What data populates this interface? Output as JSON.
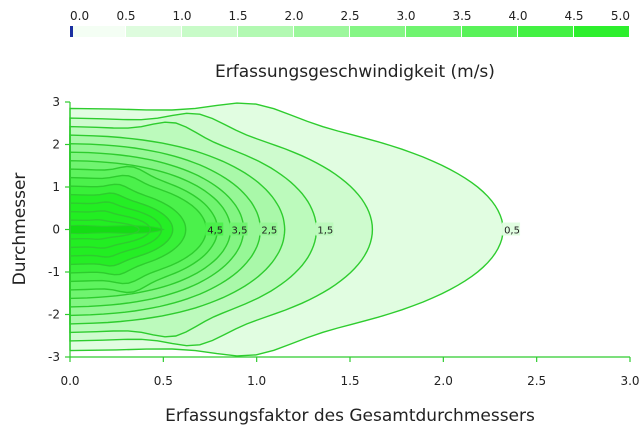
{
  "chart_data": {
    "type": "contour",
    "xlabel": "Erfassungsfaktor des Gesamtdurchmessers",
    "ylabel": "Durchmesser",
    "xlim": [
      0,
      3
    ],
    "ylim": [
      -3,
      3
    ],
    "xticks": [
      "0.0",
      "0.5",
      "1.0",
      "1.5",
      "2.0",
      "2.5",
      "3.0"
    ],
    "yticks": [
      "-3",
      "-2",
      "-1",
      "0",
      "1",
      "2",
      "3"
    ],
    "colorbar": {
      "title": "Erfassungsgeschwindigkeit (m/s)",
      "min": 0,
      "max": 5,
      "ticks": [
        "0.0",
        "0.5",
        "1.0",
        "1.5",
        "2.0",
        "2.5",
        "3.0",
        "3.5",
        "4.0",
        "4.5",
        "5.0"
      ],
      "low_color": "#ffffff",
      "high_color": "#22ee22",
      "marker_color": "#1a2fa0"
    },
    "line_color": "#2ecc2e",
    "contours": [
      {
        "level": 0.5,
        "reach": 2.32,
        "half_width": 2.85,
        "label": "0,5"
      },
      {
        "level": 1.0,
        "reach": 1.62,
        "half_width": 2.62,
        "label": ""
      },
      {
        "level": 1.5,
        "reach": 1.32,
        "half_width": 2.42,
        "label": "1,5"
      },
      {
        "level": 2.0,
        "reach": 1.15,
        "half_width": 2.22,
        "label": ""
      },
      {
        "level": 2.5,
        "reach": 1.02,
        "half_width": 2.02,
        "label": "2,5"
      },
      {
        "level": 3.0,
        "reach": 0.93,
        "half_width": 1.82,
        "label": ""
      },
      {
        "level": 3.5,
        "reach": 0.86,
        "half_width": 1.62,
        "label": "3,5"
      },
      {
        "level": 4.0,
        "reach": 0.79,
        "half_width": 1.42,
        "label": ""
      },
      {
        "level": 4.5,
        "reach": 0.73,
        "half_width": 1.22,
        "label": "4,5"
      },
      {
        "level": 5.0,
        "reach": 0.62,
        "half_width": 1.02,
        "label": ""
      },
      {
        "level": 5.5,
        "reach": 0.55,
        "half_width": 0.82,
        "label": ""
      },
      {
        "level": 6.0,
        "reach": 0.49,
        "half_width": 0.62,
        "label": ""
      },
      {
        "level": 6.5,
        "reach": 0.43,
        "half_width": 0.42,
        "label": ""
      },
      {
        "level": 7.0,
        "reach": 0.37,
        "half_width": 0.22,
        "label": ""
      }
    ],
    "core": {
      "level": 8.0,
      "reach": 0.5,
      "half_width": 0.09
    }
  }
}
